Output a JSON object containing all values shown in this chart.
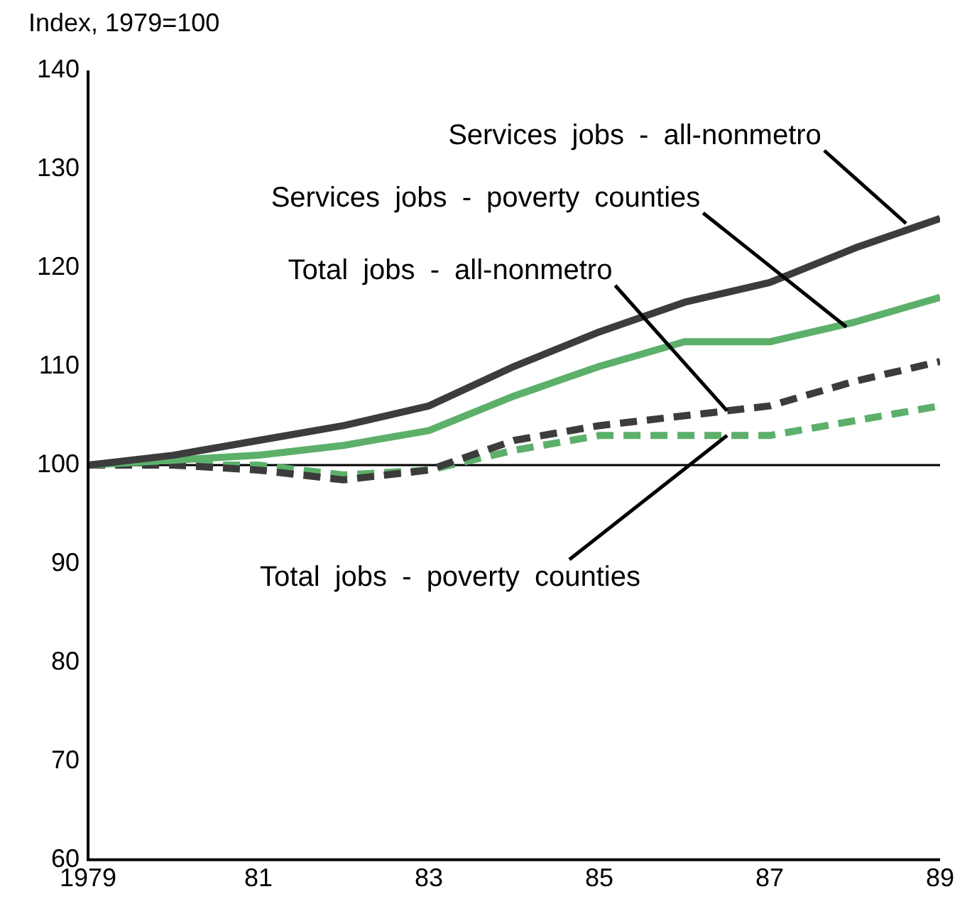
{
  "chart_data": {
    "type": "line",
    "ylabel": "Index, 1979=100",
    "x": [
      1979,
      1980,
      1981,
      1982,
      1983,
      1984,
      1985,
      1986,
      1987,
      1988,
      1989
    ],
    "xlim": [
      1979,
      1989
    ],
    "xticks": [
      1979,
      {
        "value": 1981,
        "label": "81"
      },
      {
        "value": 1983,
        "label": "83"
      },
      {
        "value": 1985,
        "label": "85"
      },
      {
        "value": 1987,
        "label": "87"
      },
      {
        "value": 1989,
        "label": "89"
      }
    ],
    "ylim": [
      60,
      140
    ],
    "yticks": [
      60,
      70,
      80,
      90,
      100,
      110,
      120,
      130,
      140
    ],
    "grid": false,
    "legend": false,
    "marker": "none",
    "series": [
      {
        "color": "#3c3c3c",
        "line_style": "solid",
        "values": [
          100,
          101,
          102.5,
          104,
          106,
          110,
          113.5,
          116.5,
          118.5,
          122,
          125
        ]
      },
      {
        "color": "#5cb06a",
        "line_style": "solid",
        "values": [
          100,
          100.5,
          101,
          102,
          103.5,
          107,
          110,
          112.5,
          112.5,
          114.5,
          117
        ]
      },
      {
        "color": "#3c3c3c",
        "line_style": "dashed",
        "values": [
          100,
          100,
          99.5,
          98.5,
          99.5,
          102.5,
          104,
          105,
          106,
          108.5,
          110.5
        ]
      },
      {
        "color": "#5cb06a",
        "line_style": "dashed",
        "values": [
          100,
          100,
          100,
          99,
          99.5,
          101.5,
          103,
          103,
          103,
          104.5,
          106
        ]
      }
    ],
    "ref_lines": [
      {
        "axis": "y",
        "value": 100,
        "color": "#000000"
      }
    ],
    "annotations": [
      {
        "text": "Services jobs - all-nonmetro",
        "x": 1988.6,
        "y": 124.5
      },
      {
        "text": "Services jobs - poverty counties",
        "x": 1987.9,
        "y": 114
      },
      {
        "text": "Total jobs - all-nonmetro",
        "x": 1986.5,
        "y": 105.5
      },
      {
        "text": "Total jobs - poverty counties",
        "x": 1986.5,
        "y": 103
      }
    ]
  }
}
